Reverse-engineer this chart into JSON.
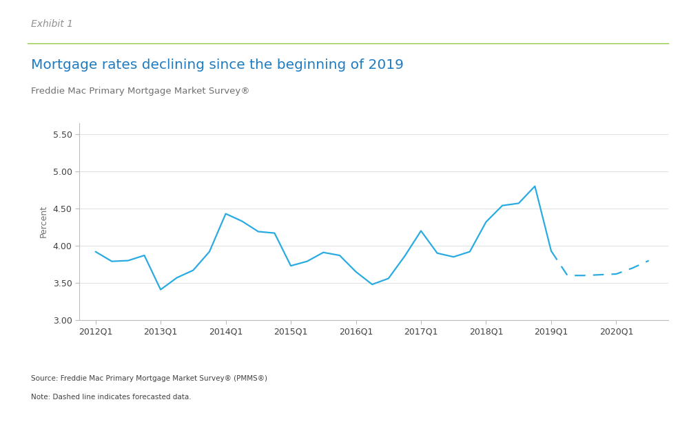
{
  "title": "Mortgage rates declining since the beginning of 2019",
  "exhibit_label": "Exhibit 1",
  "subtitle": "Freddie Mac Primary Mortgage Market Survey®",
  "ylabel": "Percent",
  "source_note": "Source: Freddie Mac Primary Mortgage Market Survey® (PMMS®)",
  "dashed_note": "Note: Dashed line indicates forecasted data.",
  "line_color": "#29ABE2",
  "background_color": "#ffffff",
  "ylim": [
    3.0,
    5.65
  ],
  "yticks": [
    3.0,
    3.5,
    4.0,
    4.5,
    5.0,
    5.5
  ],
  "solid_x": [
    2012.0,
    2012.25,
    2012.5,
    2012.75,
    2013.0,
    2013.25,
    2013.5,
    2013.75,
    2014.0,
    2014.25,
    2014.5,
    2014.75,
    2015.0,
    2015.25,
    2015.5,
    2015.75,
    2016.0,
    2016.25,
    2016.5,
    2016.75,
    2017.0,
    2017.25,
    2017.5,
    2017.75,
    2018.0,
    2018.25,
    2018.5,
    2018.75,
    2019.0
  ],
  "solid_y": [
    3.92,
    3.79,
    3.8,
    3.87,
    3.41,
    3.57,
    3.67,
    3.92,
    4.43,
    4.33,
    4.19,
    4.17,
    3.73,
    3.79,
    3.91,
    3.87,
    3.65,
    3.48,
    3.56,
    3.86,
    4.2,
    3.9,
    3.85,
    3.92,
    4.32,
    4.54,
    4.57,
    4.8,
    3.93
  ],
  "dashed_x": [
    2019.0,
    2019.25,
    2019.5,
    2019.75,
    2020.0,
    2020.25,
    2020.5
  ],
  "dashed_y": [
    3.93,
    3.6,
    3.6,
    3.61,
    3.62,
    3.7,
    3.8
  ],
  "xtick_positions": [
    2012.0,
    2013.0,
    2014.0,
    2015.0,
    2016.0,
    2017.0,
    2018.0,
    2019.0,
    2020.0
  ],
  "xtick_labels": [
    "2012Q1",
    "2013Q1",
    "2014Q1",
    "2015Q1",
    "2016Q1",
    "2017Q1",
    "2018Q1",
    "2019Q1",
    "2020Q1"
  ],
  "title_color": "#1F7BC0",
  "exhibit_color": "#909090",
  "subtitle_color": "#707070",
  "note_color": "#404040",
  "separator_color": "#8DC63F",
  "axis_color": "#BBBBBB",
  "grid_color": "#E0E0E0"
}
